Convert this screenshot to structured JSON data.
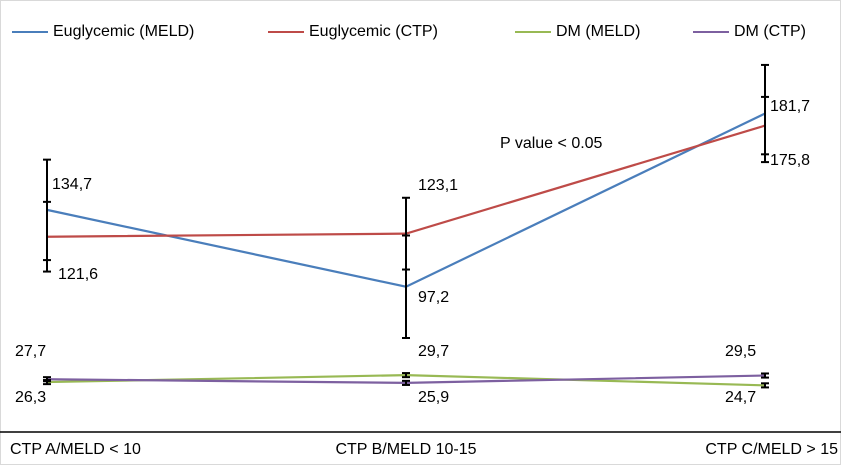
{
  "chart_data": {
    "type": "line",
    "categories": [
      "CTP A/MELD < 10",
      "CTP B/MELD 10-15",
      "CTP C/MELD > 15"
    ],
    "annotation": "P value < 0.05",
    "series": [
      {
        "name": "Euglycemic (MELD)",
        "color": "#4a7ebb",
        "values": [
          134.7,
          97.2,
          181.7
        ],
        "value_labels": [
          "134,7",
          "97,2",
          "181,7"
        ],
        "errors": [
          24.5,
          25,
          23.7
        ]
      },
      {
        "name": "Euglycemic (CTP)",
        "color": "#be4b48",
        "values": [
          121.6,
          123.1,
          175.8
        ],
        "value_labels": [
          "121,6",
          "123,1",
          "175,8"
        ],
        "errors": [
          17,
          17.5,
          14
        ]
      },
      {
        "name": "DM (MELD)",
        "color": "#98b954",
        "values": [
          26.3,
          29.7,
          24.7
        ],
        "value_labels": [
          "26,3",
          "29,7",
          "24,7"
        ],
        "errors": [
          1,
          1,
          1
        ]
      },
      {
        "name": "DM (CTP)",
        "color": "#7d60a0",
        "values": [
          27.7,
          25.9,
          29.5
        ],
        "value_labels": [
          "27,7",
          "25,9",
          "29,5"
        ],
        "errors": [
          1,
          1,
          1
        ]
      }
    ]
  }
}
